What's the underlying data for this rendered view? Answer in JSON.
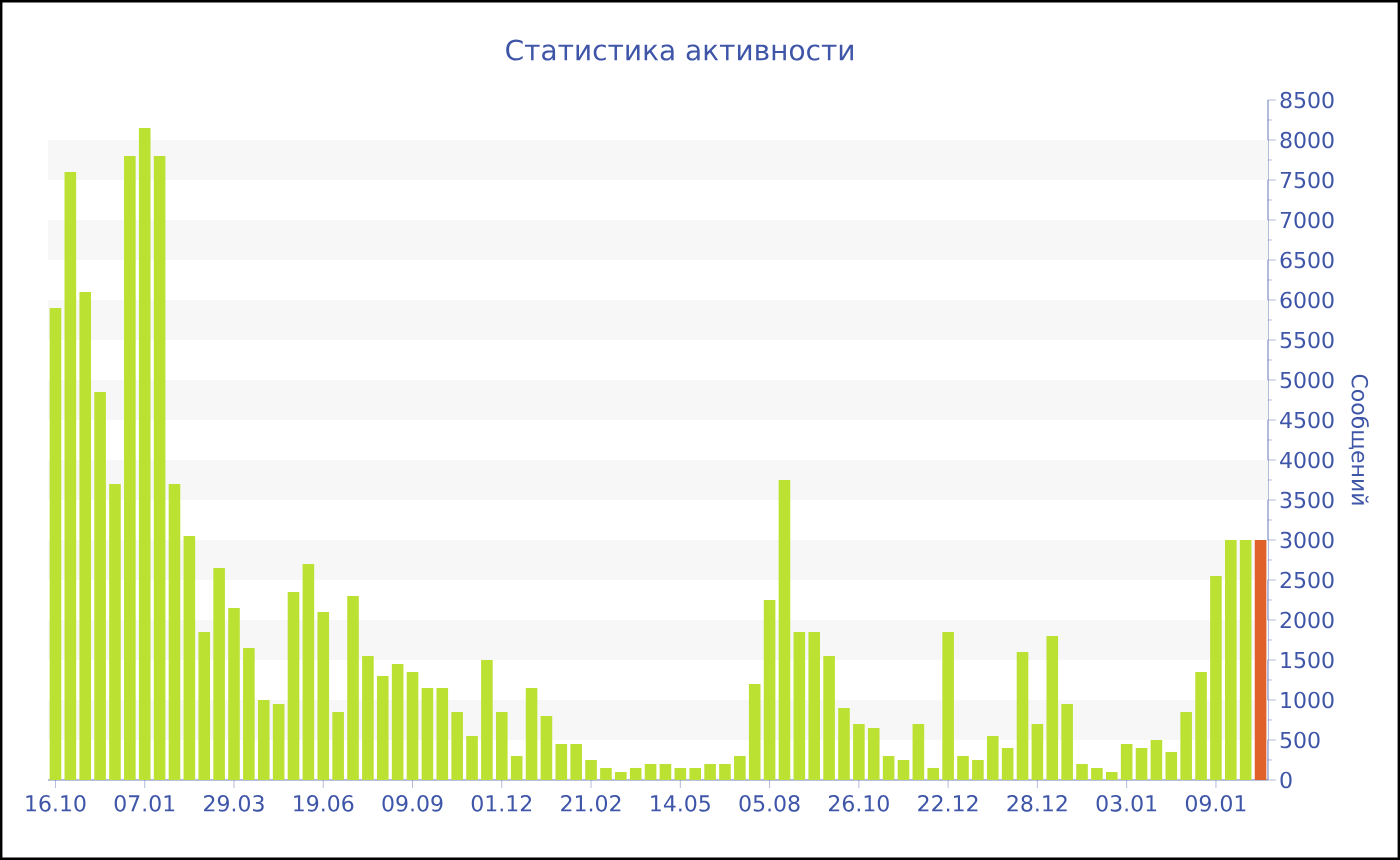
{
  "chart_data": {
    "type": "bar",
    "title": "Статистика активности",
    "ylabel": "Сообщений",
    "categories": [
      "16.10",
      null,
      null,
      null,
      null,
      null,
      "07.01",
      null,
      null,
      null,
      null,
      null,
      "29.03",
      null,
      null,
      null,
      null,
      null,
      "19.06",
      null,
      null,
      null,
      null,
      null,
      "09.09",
      null,
      null,
      null,
      null,
      null,
      "01.12",
      null,
      null,
      null,
      null,
      null,
      "21.02",
      null,
      null,
      null,
      null,
      null,
      "14.05",
      null,
      null,
      null,
      null,
      null,
      "05.08",
      null,
      null,
      null,
      null,
      null,
      "26.10",
      null,
      null,
      null,
      null,
      null,
      "22.12",
      null,
      null,
      null,
      null,
      null,
      "28.12",
      null,
      null,
      null,
      null,
      null,
      "03.01",
      null,
      null,
      null,
      null,
      null,
      "09.01",
      null,
      null,
      null
    ],
    "values": [
      5900,
      7600,
      6100,
      4850,
      3700,
      7800,
      8150,
      7800,
      3700,
      3050,
      1850,
      2650,
      2150,
      1650,
      1000,
      950,
      2350,
      2700,
      2100,
      850,
      2300,
      1550,
      1300,
      1450,
      1350,
      1150,
      1150,
      850,
      550,
      1500,
      850,
      300,
      1150,
      800,
      450,
      450,
      250,
      150,
      100,
      150,
      200,
      200,
      150,
      150,
      200,
      200,
      300,
      1200,
      2250,
      3750,
      1850,
      1850,
      1550,
      900,
      700,
      650,
      300,
      250,
      700,
      150,
      1850,
      300,
      250,
      550,
      400,
      1600,
      700,
      1800,
      950,
      200,
      150,
      100,
      450,
      400,
      500,
      350,
      850,
      1350,
      2550,
      3000,
      3000,
      3000
    ],
    "colors": [
      "#bbe133",
      "#bbe133",
      "#bbe133",
      "#bbe133",
      "#bbe133",
      "#bbe133",
      "#bbe133",
      "#bbe133",
      "#bbe133",
      "#bbe133",
      "#bbe133",
      "#bbe133",
      "#bbe133",
      "#bbe133",
      "#bbe133",
      "#bbe133",
      "#bbe133",
      "#bbe133",
      "#bbe133",
      "#bbe133",
      "#bbe133",
      "#bbe133",
      "#bbe133",
      "#bbe133",
      "#bbe133",
      "#bbe133",
      "#bbe133",
      "#bbe133",
      "#bbe133",
      "#bbe133",
      "#bbe133",
      "#bbe133",
      "#bbe133",
      "#bbe133",
      "#bbe133",
      "#bbe133",
      "#bbe133",
      "#bbe133",
      "#bbe133",
      "#bbe133",
      "#bbe133",
      "#bbe133",
      "#bbe133",
      "#bbe133",
      "#bbe133",
      "#bbe133",
      "#bbe133",
      "#bbe133",
      "#bbe133",
      "#bbe133",
      "#bbe133",
      "#bbe133",
      "#bbe133",
      "#bbe133",
      "#bbe133",
      "#bbe133",
      "#bbe133",
      "#bbe133",
      "#bbe133",
      "#bbe133",
      "#bbe133",
      "#bbe133",
      "#bbe133",
      "#bbe133",
      "#bbe133",
      "#bbe133",
      "#bbe133",
      "#bbe133",
      "#bbe133",
      "#bbe133",
      "#bbe133",
      "#bbe133",
      "#bbe133",
      "#bbe133",
      "#bbe133",
      "#bbe133",
      "#bbe133",
      "#bbe133",
      "#bbe133",
      "#bbe133",
      "#bbe133",
      "#e0622a"
    ],
    "ylim": [
      0,
      8500
    ],
    "yticks": [
      0,
      500,
      1000,
      1500,
      2000,
      2500,
      3000,
      3500,
      4000,
      4500,
      5000,
      5500,
      6000,
      6500,
      7000,
      7500,
      8000,
      8500
    ],
    "bands": [
      {
        "axis": "y",
        "from": 500,
        "to": 1000,
        "color": "#f7f7f7"
      },
      {
        "axis": "y",
        "from": 1500,
        "to": 2000,
        "color": "#f7f7f7"
      },
      {
        "axis": "y",
        "from": 2500,
        "to": 3000,
        "color": "#f7f7f7"
      },
      {
        "axis": "y",
        "from": 3500,
        "to": 4000,
        "color": "#f7f7f7"
      },
      {
        "axis": "y",
        "from": 4500,
        "to": 5000,
        "color": "#f7f7f7"
      },
      {
        "axis": "y",
        "from": 5500,
        "to": 6000,
        "color": "#f7f7f7"
      },
      {
        "axis": "y",
        "from": 6500,
        "to": 7000,
        "color": "#f7f7f7"
      },
      {
        "axis": "y",
        "from": 7500,
        "to": 8000,
        "color": "#f7f7f7"
      }
    ]
  }
}
